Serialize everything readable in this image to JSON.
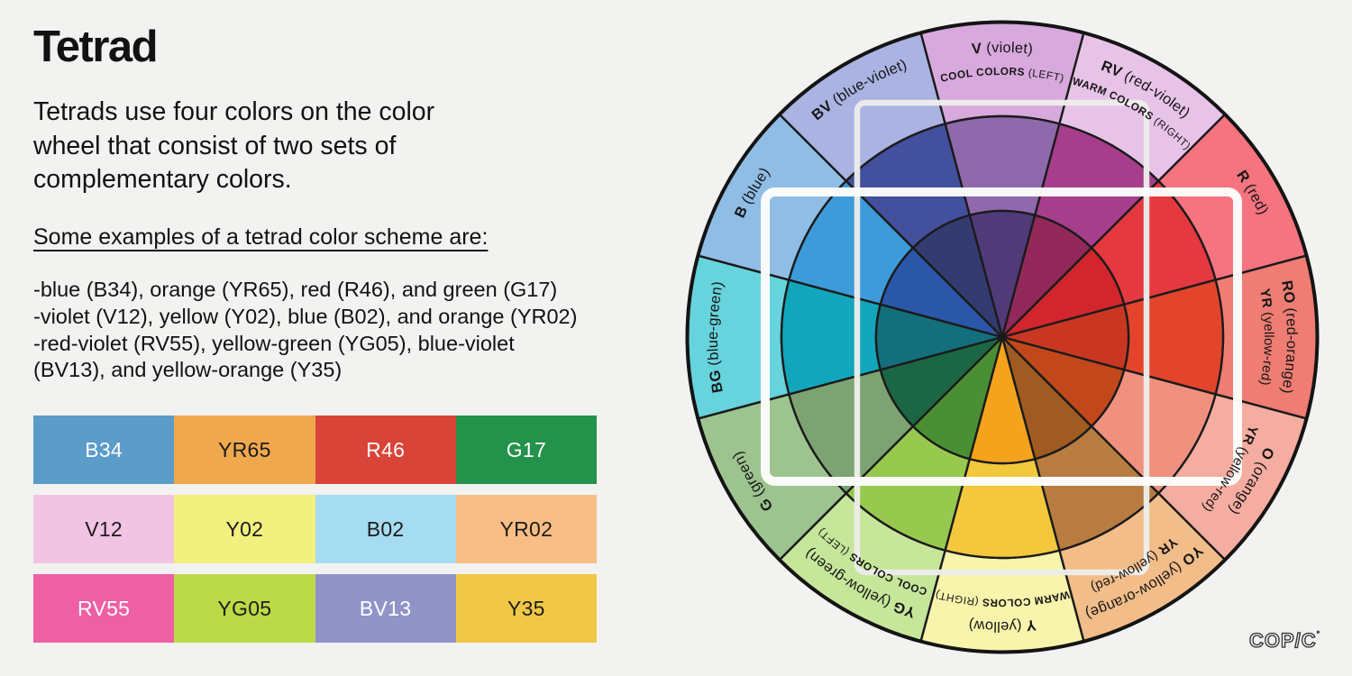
{
  "page": {
    "background": "#F2F2F1"
  },
  "article": {
    "title": "Tetrad",
    "description_lines": [
      "Tetrads use four colors on the color",
      "wheel that consist of two sets of",
      "complementary colors."
    ],
    "examples_heading": "Some examples of a tetrad color scheme are:",
    "example_lines": [
      "-blue (B34), orange (YR65), red (R46), and green (G17)",
      "-violet (V12), yellow (Y02), blue (B02), and orange (YR02)",
      "-red-violet (RV55), yellow-green (YG05), blue-violet",
      "(BV13), and yellow-orange (Y35)"
    ]
  },
  "swatch_grid": {
    "rows": [
      [
        {
          "code": "B34",
          "color": "#5B9CC9",
          "text_color": "#FFFFFF"
        },
        {
          "code": "YR65",
          "color": "#F0A84D",
          "text_color": "#1C1C1C"
        },
        {
          "code": "R46",
          "color": "#D94438",
          "text_color": "#FFFFFF"
        },
        {
          "code": "G17",
          "color": "#23924A",
          "text_color": "#FFFFFF"
        }
      ],
      [
        {
          "code": "V12",
          "color": "#F1C4E3",
          "text_color": "#1C1C1C"
        },
        {
          "code": "Y02",
          "color": "#F2F07E",
          "text_color": "#1C1C1C"
        },
        {
          "code": "B02",
          "color": "#A5DCF2",
          "text_color": "#1C1C1C"
        },
        {
          "code": "YR02",
          "color": "#F9BE85",
          "text_color": "#1C1C1C"
        }
      ],
      [
        {
          "code": "RV55",
          "color": "#EE5FA4",
          "text_color": "#FFFFFF"
        },
        {
          "code": "YG05",
          "color": "#BCD947",
          "text_color": "#1C1C1C"
        },
        {
          "code": "BV13",
          "color": "#9094C7",
          "text_color": "#FFFFFF"
        },
        {
          "code": "Y35",
          "color": "#F0C845",
          "text_color": "#1C1C1C"
        }
      ]
    ]
  },
  "wheel": {
    "outline_color": "#1B1B1B",
    "label_color": "#161616",
    "segments": [
      {
        "code": "V",
        "name": "(violet)",
        "sub": {
          "code": "COOL COLORS",
          "rest": "(LEFT)",
          "small": true
        },
        "outer": "#D7A9DC",
        "middle": "#9069AC",
        "inner": "#503A78"
      },
      {
        "code": "RV",
        "name": "(red-violet)",
        "sub": {
          "code": "WARM COLORS",
          "rest": "(RIGHT)",
          "small": true
        },
        "outer": "#E8C3E8",
        "middle": "#A63E8C",
        "inner": "#93295A"
      },
      {
        "code": "R",
        "name": "(red)",
        "sub": null,
        "outer": "#F5747F",
        "middle": "#E63840",
        "inner": "#D2252D"
      },
      {
        "code": "RO",
        "name": "(red-orange)",
        "sub": {
          "code": "YR",
          "rest": "(yellow-red)",
          "small": false
        },
        "outer": "#EF7D73",
        "middle": "#E2452C",
        "inner": "#C93722"
      },
      {
        "code": "O",
        "name": "(orange)",
        "sub": {
          "code": "YR",
          "rest": "(yellow-red)",
          "small": false
        },
        "outer": "#F5ACA1",
        "middle": "#F0917F",
        "inner": "#C2481B"
      },
      {
        "code": "YO",
        "name": "(yellow-orange)",
        "sub": {
          "code": "YR",
          "rest": "(yellow-red)",
          "small": false
        },
        "outer": "#F2BD89",
        "middle": "#B97C40",
        "inner": "#A05B22"
      },
      {
        "code": "Y",
        "name": "(yellow)",
        "sub": {
          "code": "WARM COLORS",
          "rest": "(RIGHT)",
          "small": true
        },
        "outer": "#F8F4AC",
        "middle": "#F3C83D",
        "inner": "#F4A31C"
      },
      {
        "code": "YG",
        "name": "(yellow-green)",
        "sub": {
          "code": "COOL COLORS",
          "rest": "(LEFT)",
          "small": true
        },
        "outer": "#C6E69A",
        "middle": "#97C94F",
        "inner": "#4A8F33"
      },
      {
        "code": "G",
        "name": "(green)",
        "sub": null,
        "outer": "#9DC48F",
        "middle": "#7CA371",
        "inner": "#1B6745"
      },
      {
        "code": "BG",
        "name": "(blue-green)",
        "sub": null,
        "outer": "#67D3DC",
        "middle": "#12A6BC",
        "inner": "#136F7C"
      },
      {
        "code": "B",
        "name": "(blue)",
        "sub": null,
        "outer": "#8FBDE6",
        "middle": "#3D9BD9",
        "inner": "#2A57A8"
      },
      {
        "code": "BV",
        "name": "(blue-violet)",
        "sub": null,
        "outer": "#AAB3E2",
        "middle": "#43509D",
        "inner": "#333B70"
      }
    ],
    "tetrad_rectangles": [
      {
        "tetrad": "BV13-RV55-YO-YG05",
        "stroke": "#EDEDEB",
        "orientation": "portrait"
      },
      {
        "tetrad": "B34-R46-YR65-G17",
        "stroke": "#FDFDFC",
        "orientation": "landscape"
      }
    ],
    "logo_text": "COP/C"
  }
}
